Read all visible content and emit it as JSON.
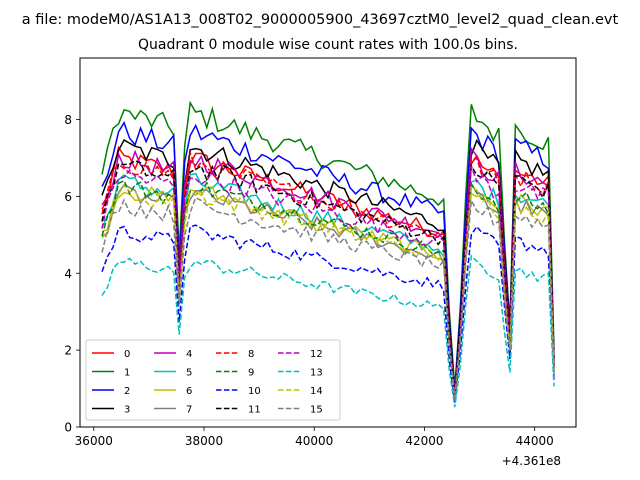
{
  "figure": {
    "suptitle": "a file: modeM0/AS1A13_008T02_9000005900_43697cztM0_level2_quad_clean.evt",
    "title": "Quadrant 0 module wise count rates with 100.0s bins.",
    "offset_text": "+4.361e8"
  },
  "chart_data": {
    "type": "line",
    "title": "Quadrant 0 module wise count rates with 100.0s bins.",
    "xlabel": "",
    "ylabel": "",
    "x_offset": 436100000,
    "xlim": [
      35750,
      44750
    ],
    "ylim": [
      0,
      9.6
    ],
    "xticks": [
      36000,
      38000,
      40000,
      42000,
      44000
    ],
    "yticks": [
      0,
      2,
      4,
      6,
      8
    ],
    "grid": false,
    "legend_location": "lower-left",
    "legend_columns": 4,
    "x": {
      "start": 36150,
      "step": 100,
      "count": 83
    },
    "segments": [
      {
        "x": 36150,
        "level": 0.8
      },
      {
        "x": 36250,
        "level": 0.86
      },
      {
        "x": 36350,
        "level": 0.94
      },
      {
        "x": 36450,
        "level": 1.0
      },
      {
        "x": 37450,
        "level": 0.95
      },
      {
        "x": 37550,
        "level": 0.55
      },
      {
        "x": 37650,
        "level": 0.88
      },
      {
        "x": 37750,
        "level": 1.0
      },
      {
        "x": 42350,
        "level": 0.72
      },
      {
        "x": 42450,
        "level": 0.36
      },
      {
        "x": 42550,
        "level": 0.12
      },
      {
        "x": 42650,
        "level": 0.38
      },
      {
        "x": 42750,
        "level": 0.72
      },
      {
        "x": 42850,
        "level": 1.0
      },
      {
        "x": 43350,
        "level": 0.92
      },
      {
        "x": 43450,
        "level": 0.6
      },
      {
        "x": 43550,
        "level": 0.34
      },
      {
        "x": 43650,
        "level": 0.95
      },
      {
        "x": 44250,
        "level": 0.9
      },
      {
        "x": 44350,
        "level": 0.24
      }
    ],
    "series": [
      {
        "name": "0",
        "color": "#ff0000",
        "dash": "solid",
        "base": 7.0
      },
      {
        "name": "1",
        "color": "#008000",
        "dash": "solid",
        "base": 8.2
      },
      {
        "name": "2",
        "color": "#0000ff",
        "dash": "solid",
        "base": 7.7
      },
      {
        "name": "3",
        "color": "#000000",
        "dash": "solid",
        "base": 7.3
      },
      {
        "name": "4",
        "color": "#bf00bf",
        "dash": "solid",
        "base": 7.0
      },
      {
        "name": "5",
        "color": "#00bfbf",
        "dash": "solid",
        "base": 6.4
      },
      {
        "name": "6",
        "color": "#bfbf00",
        "dash": "solid",
        "base": 6.2
      },
      {
        "name": "7",
        "color": "#808080",
        "dash": "solid",
        "base": 6.1
      },
      {
        "name": "8",
        "color": "#ff0000",
        "dash": "dashed",
        "base": 6.9
      },
      {
        "name": "9",
        "color": "#008000",
        "dash": "dashed",
        "base": 6.3
      },
      {
        "name": "10",
        "color": "#0000ff",
        "dash": "dashed",
        "base": 5.1
      },
      {
        "name": "11",
        "color": "#000000",
        "dash": "dashed",
        "base": 6.8
      },
      {
        "name": "12",
        "color": "#bf00bf",
        "dash": "dashed",
        "base": 6.6
      },
      {
        "name": "13",
        "color": "#00bfbf",
        "dash": "dashed",
        "base": 4.3
      },
      {
        "name": "14",
        "color": "#bfbf00",
        "dash": "dashed",
        "base": 6.1
      },
      {
        "name": "15",
        "color": "#808080",
        "dash": "dashed",
        "base": 5.8
      }
    ]
  }
}
